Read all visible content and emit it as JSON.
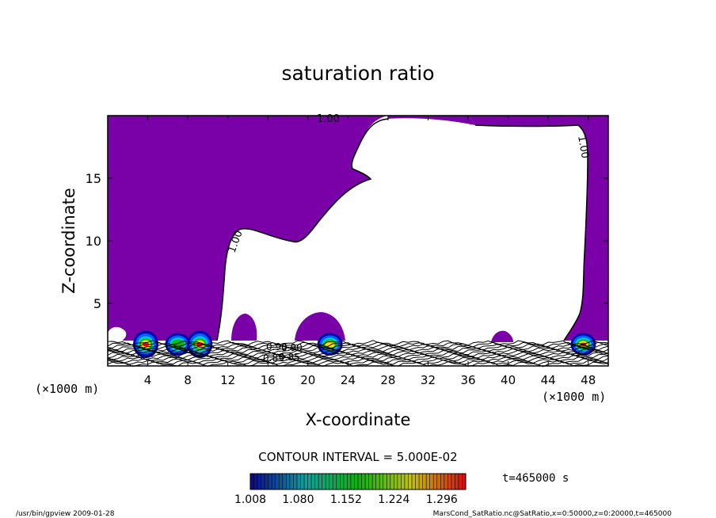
{
  "chart_data": {
    "type": "contour",
    "title": "saturation ratio",
    "xlabel": "X-coordinate",
    "ylabel": "Z-coordinate",
    "x_unit": "(×1000 m)",
    "x_unit_right": "(×1000 m)",
    "xlim": [
      0,
      50
    ],
    "ylim": [
      0,
      20
    ],
    "x_ticks": [
      "4",
      "8",
      "12",
      "16",
      "20",
      "24",
      "28",
      "32",
      "36",
      "40",
      "44",
      "48"
    ],
    "x_tick_values": [
      4,
      8,
      12,
      16,
      20,
      24,
      28,
      32,
      36,
      40,
      44,
      48
    ],
    "y_ticks": [
      "5",
      "10",
      "15"
    ],
    "y_tick_values": [
      5,
      10,
      15
    ],
    "contour_interval_label": "CONTOUR INTERVAL = 5.000E-02",
    "time_label": "t=465000 s",
    "contour_labels": [
      "1.00",
      "1.00",
      "1.00",
      "0.90",
      "0.90",
      "0.85",
      "0.85"
    ],
    "colorbar": {
      "min": 1.008,
      "max": 1.332,
      "tick_labels": [
        "1.008",
        "1.080",
        "1.152",
        "1.224",
        "1.296"
      ],
      "tick_values": [
        1.008,
        1.08,
        1.152,
        1.224,
        1.296
      ]
    },
    "colors": {
      "fill_purple": "#7a00a8",
      "contour_line": "#000000",
      "cell_cores": [
        "#00c8ff",
        "#00c000",
        "#ffe000",
        "#ff0000"
      ]
    },
    "supersaturated_cells": [
      {
        "x_center": 3.8,
        "z_top": 2.7,
        "max": 1.3
      },
      {
        "x_center": 7.0,
        "z_top": 2.5,
        "max": 1.2
      },
      {
        "x_center": 9.2,
        "z_top": 2.7,
        "max": 1.3
      },
      {
        "x_center": 22.2,
        "z_top": 2.5,
        "max": 1.25
      },
      {
        "x_center": 47.5,
        "z_top": 2.5,
        "max": 1.28
      }
    ]
  },
  "footer": {
    "left": "/usr/bin/gpview  2009-01-28",
    "right": "MarsCond_SatRatio.nc@SatRatio,x=0:50000,z=0:20000,t=465000"
  }
}
